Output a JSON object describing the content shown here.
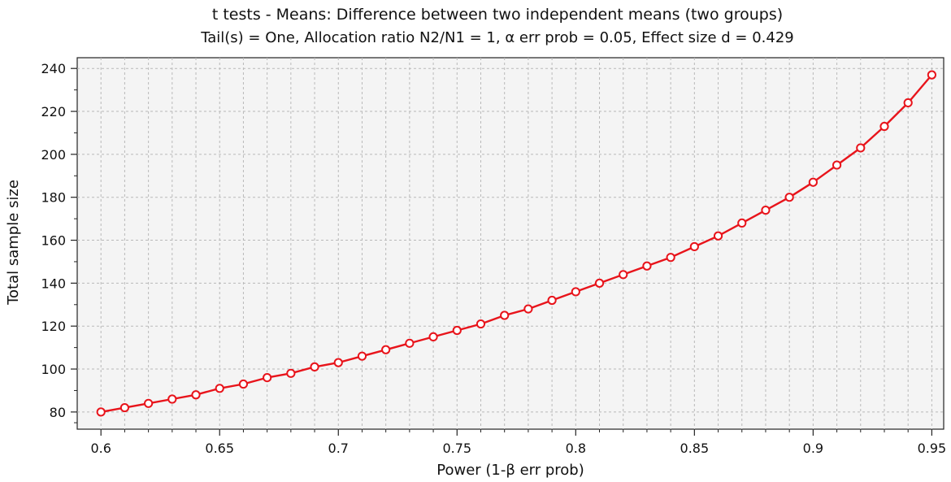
{
  "chart_data": {
    "type": "line",
    "title": "t tests - Means: Difference between two independent means (two groups)",
    "subtitle": "Tail(s) = One, Allocation ratio N2/N1 = 1, α err prob = 0.05, Effect size d = 0.429",
    "xlabel": "Power (1-β err prob)",
    "ylabel": "Total sample size",
    "xlim": [
      0.59,
      0.955
    ],
    "ylim": [
      72,
      245
    ],
    "x_ticks": [
      "0.6",
      "0.65",
      "0.7",
      "0.75",
      "0.8",
      "0.85",
      "0.9",
      "0.95"
    ],
    "y_ticks": [
      "80",
      "100",
      "120",
      "140",
      "160",
      "180",
      "200",
      "220",
      "240"
    ],
    "grid": true,
    "series": [
      {
        "color": "#e8141b",
        "x": [
          0.6,
          0.61,
          0.62,
          0.63,
          0.64,
          0.65,
          0.66,
          0.67,
          0.68,
          0.69,
          0.7,
          0.71,
          0.72,
          0.73,
          0.74,
          0.75,
          0.76,
          0.77,
          0.78,
          0.79,
          0.8,
          0.81,
          0.82,
          0.83,
          0.84,
          0.85,
          0.86,
          0.87,
          0.88,
          0.89,
          0.9,
          0.91,
          0.92,
          0.93,
          0.94,
          0.95
        ],
        "y": [
          80,
          82,
          84,
          86,
          88,
          91,
          93,
          96,
          98,
          101,
          103,
          106,
          109,
          112,
          115,
          118,
          121,
          125,
          128,
          132,
          136,
          140,
          144,
          148,
          152,
          157,
          162,
          168,
          174,
          180,
          187,
          195,
          203,
          213,
          224,
          237
        ]
      }
    ]
  }
}
